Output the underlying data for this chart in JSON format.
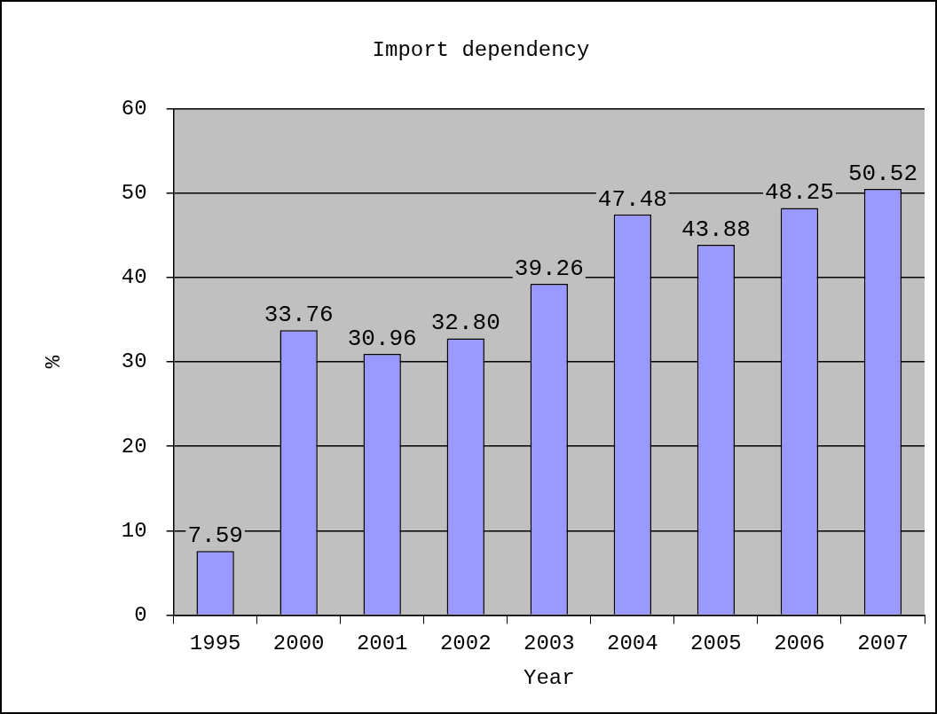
{
  "chart_data": {
    "type": "bar",
    "title": "Import dependency",
    "xlabel": "Year",
    "ylabel": "%",
    "categories": [
      "1995",
      "2000",
      "2001",
      "2002",
      "2003",
      "2004",
      "2005",
      "2006",
      "2007"
    ],
    "values": [
      7.59,
      33.76,
      30.96,
      32.8,
      39.26,
      47.48,
      43.88,
      48.25,
      50.52
    ],
    "value_labels": [
      "7.59",
      "33.76",
      "30.96",
      "32.80",
      "39.26",
      "47.48",
      "43.88",
      "48.25",
      "50.52"
    ],
    "color": "#9999ff",
    "ylim": [
      0,
      60
    ],
    "yticks": [
      0,
      10,
      20,
      30,
      40,
      50,
      60
    ],
    "grid": "y",
    "legend": false
  }
}
